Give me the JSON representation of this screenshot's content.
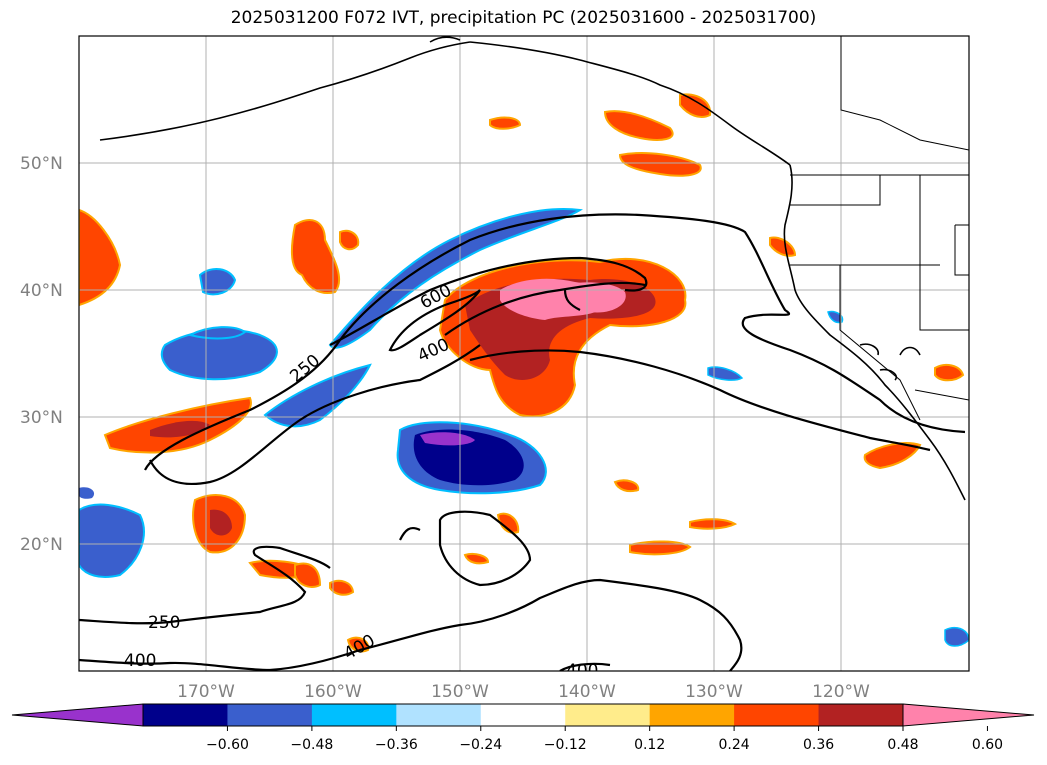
{
  "title": "2025031200 F072 IVT, precipitation PC (2025031600 - 2025031700)",
  "map": {
    "lat_ticks": [
      "50°N",
      "40°N",
      "30°N",
      "20°N"
    ],
    "lon_ticks": [
      "170°W",
      "160°W",
      "150°W",
      "140°W",
      "130°W",
      "120°W"
    ],
    "contour_labels": {
      "c250_a": "250",
      "c600": "600",
      "c400_a": "400",
      "c250_b": "250",
      "c400_b": "400",
      "c400_c": "400",
      "c400_d": "400"
    }
  },
  "colorbar": {
    "colors": [
      "#9932cc",
      "#00008b",
      "#3a5fcd",
      "#00bfff",
      "#b0e2ff",
      "#ffffff",
      "#ffec8b",
      "#ffa500",
      "#ff4500",
      "#b22222",
      "#ff82ab"
    ],
    "labels": [
      "−0.60",
      "−0.48",
      "−0.36",
      "−0.24",
      "−0.12",
      "0.12",
      "0.24",
      "0.36",
      "0.48",
      "0.60"
    ]
  }
}
